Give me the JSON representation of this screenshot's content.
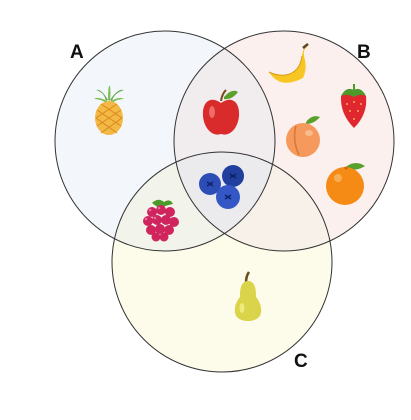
{
  "sets": [
    {
      "id": "A",
      "label": "A",
      "fill": "#f3f7fb"
    },
    {
      "id": "B",
      "label": "B",
      "fill": "#fcf0ee"
    },
    {
      "id": "C",
      "label": "C",
      "fill": "#fdfbea"
    }
  ],
  "items": [
    {
      "icon": "pineapple-icon",
      "membership": [
        "A"
      ]
    },
    {
      "icon": "apple-icon",
      "membership": [
        "A",
        "B"
      ]
    },
    {
      "icon": "banana-icon",
      "membership": [
        "B"
      ]
    },
    {
      "icon": "strawberry-icon",
      "membership": [
        "B"
      ]
    },
    {
      "icon": "peach-icon",
      "membership": [
        "B"
      ]
    },
    {
      "icon": "orange-icon",
      "membership": [
        "B"
      ]
    },
    {
      "icon": "blueberries-icon",
      "membership": [
        "A",
        "B",
        "C"
      ]
    },
    {
      "icon": "raspberry-icon",
      "membership": [
        "A",
        "C"
      ]
    },
    {
      "icon": "pear-icon",
      "membership": [
        "C"
      ]
    }
  ],
  "colors": {
    "outline": "#333333",
    "overlap_ab": "#f1ecee",
    "overlap_ac": "#f2f4ec",
    "overlap_bc": "#f8f1ea",
    "overlap_abc": "#ebebee"
  }
}
